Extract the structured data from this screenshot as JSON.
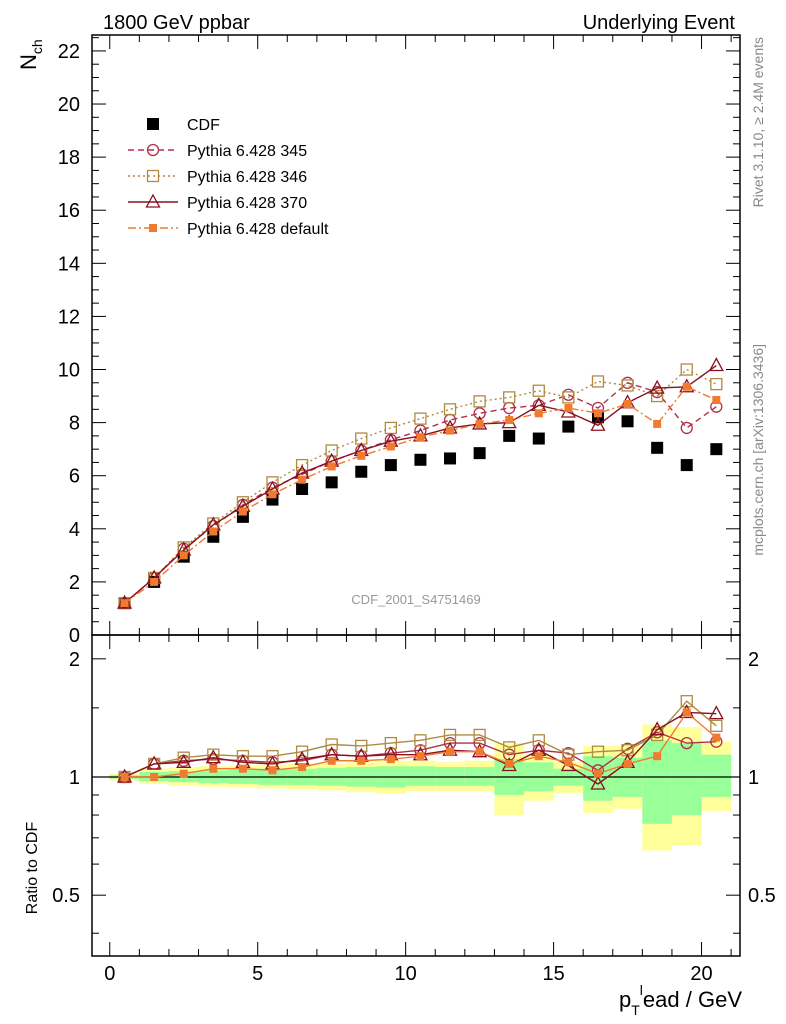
{
  "header": {
    "left_title": "1800 GeV ppbar",
    "right_title": "Underlying Event",
    "right_side_1": "Rivet 3.1.10, ≥ 2.4M events",
    "right_side_2": "mcplots.cern.ch [arXiv:1306.3436]",
    "analysis_id": "CDF_2001_S4751469"
  },
  "colors": {
    "cdf": "#000000",
    "p345": "#b03048",
    "p346": "#b08a40",
    "p370": "#8a1020",
    "pdef": "#f07a30",
    "band_yellow": "#ffff99",
    "band_green": "#99ff99"
  },
  "chart_data": [
    {
      "type": "scatter",
      "panel": "main",
      "ylabel_main": "N",
      "ylabel_sub": "ch",
      "xlim": [
        -0.6,
        21.3
      ],
      "ylim": [
        0,
        22.6
      ],
      "yticks": [
        "0",
        "2",
        "4",
        "6",
        "8",
        "10",
        "12",
        "14",
        "16",
        "18",
        "20",
        "22"
      ],
      "x": [
        0.5,
        1.5,
        2.5,
        3.5,
        4.5,
        5.5,
        6.5,
        7.5,
        8.5,
        9.5,
        10.5,
        11.5,
        12.5,
        13.5,
        14.5,
        15.5,
        16.5,
        17.5,
        18.5,
        19.5,
        20.5
      ],
      "series": [
        {
          "name": "CDF",
          "key": "cdf",
          "marker": "square-filled",
          "values": [
            1.2,
            2.0,
            2.95,
            3.7,
            4.45,
            5.1,
            5.5,
            5.75,
            6.15,
            6.4,
            6.6,
            6.65,
            6.85,
            7.5,
            7.4,
            7.85,
            8.2,
            8.05,
            7.05,
            6.4,
            7.0
          ]
        },
        {
          "name": "Pythia 6.428 345",
          "key": "p345",
          "marker": "circle-open",
          "line": "dashed",
          "values": [
            1.2,
            2.15,
            3.25,
            4.1,
            4.9,
            5.55,
            6.05,
            6.55,
            6.95,
            7.35,
            7.7,
            8.1,
            8.35,
            8.55,
            8.65,
            9.05,
            8.55,
            9.5,
            9.15,
            7.8,
            8.6
          ]
        },
        {
          "name": "Pythia 6.428 346",
          "key": "p346",
          "marker": "square-open",
          "line": "dotted",
          "values": [
            1.2,
            2.15,
            3.3,
            4.2,
            5.0,
            5.75,
            6.4,
            6.95,
            7.4,
            7.8,
            8.15,
            8.5,
            8.8,
            8.95,
            9.2,
            8.95,
            9.55,
            9.4,
            9.0,
            10.0,
            9.45
          ]
        },
        {
          "name": "Pythia 6.428 370",
          "key": "p370",
          "marker": "triangle-open",
          "line": "solid",
          "values": [
            1.2,
            2.15,
            3.2,
            4.15,
            4.85,
            5.5,
            6.1,
            6.55,
            6.95,
            7.3,
            7.5,
            7.8,
            7.95,
            8.0,
            8.65,
            8.4,
            7.9,
            8.75,
            9.3,
            9.35,
            10.15
          ]
        },
        {
          "name": "Pythia 6.428 default",
          "key": "pdef",
          "marker": "square-filled-small",
          "line": "dashdot",
          "values": [
            1.2,
            2.0,
            3.0,
            3.9,
            4.65,
            5.3,
            5.85,
            6.35,
            6.75,
            7.1,
            7.45,
            7.7,
            7.95,
            8.1,
            8.35,
            8.55,
            8.35,
            8.7,
            7.95,
            9.35,
            8.85
          ]
        }
      ]
    },
    {
      "type": "scatter",
      "panel": "ratio",
      "ylabel": "Ratio to CDF",
      "xlabel": "p_T^lead / GeV",
      "xlabel_main": "p",
      "xlabel_sub": "T",
      "xlabel_sup": "l",
      "xlabel_tail": "ead / GeV",
      "xlim": [
        -0.6,
        21.3
      ],
      "ylim_log": [
        0.35,
        2.3
      ],
      "yticks": [
        "0.5",
        "1",
        "2"
      ],
      "xticks": [
        "0",
        "5",
        "10",
        "15",
        "20"
      ],
      "bands": {
        "x_low": [
          0,
          1,
          2,
          3,
          4,
          5,
          6,
          7,
          8,
          9,
          10,
          11,
          12,
          13,
          14,
          15,
          16,
          17,
          18,
          19,
          20
        ],
        "x_high": [
          1,
          2,
          3,
          4,
          5,
          6,
          7,
          8,
          9,
          10,
          11,
          12,
          13,
          14,
          15,
          16,
          17,
          18,
          19,
          20,
          21
        ],
        "yellow_low": [
          0.98,
          0.96,
          0.95,
          0.945,
          0.94,
          0.935,
          0.93,
          0.925,
          0.915,
          0.905,
          0.92,
          0.92,
          0.92,
          0.8,
          0.87,
          0.91,
          0.81,
          0.83,
          0.65,
          0.67,
          0.82
        ],
        "yellow_high": [
          1.02,
          1.05,
          1.06,
          1.065,
          1.07,
          1.075,
          1.08,
          1.085,
          1.09,
          1.1,
          1.1,
          1.09,
          1.1,
          1.22,
          1.14,
          1.09,
          1.2,
          1.2,
          1.36,
          1.34,
          1.23
        ],
        "green_low": [
          0.99,
          0.975,
          0.97,
          0.965,
          0.96,
          0.955,
          0.955,
          0.95,
          0.945,
          0.94,
          0.95,
          0.95,
          0.95,
          0.9,
          0.92,
          0.95,
          0.87,
          0.89,
          0.76,
          0.8,
          0.89
        ],
        "green_high": [
          1.01,
          1.03,
          1.035,
          1.04,
          1.045,
          1.05,
          1.05,
          1.055,
          1.06,
          1.065,
          1.065,
          1.06,
          1.06,
          1.11,
          1.09,
          1.05,
          1.13,
          1.12,
          1.24,
          1.22,
          1.14
        ]
      },
      "series": [
        {
          "name": "Pythia 6.428 345",
          "key": "p345",
          "values": [
            1.0,
            1.08,
            1.1,
            1.11,
            1.1,
            1.09,
            1.1,
            1.14,
            1.13,
            1.15,
            1.17,
            1.22,
            1.22,
            1.14,
            1.17,
            1.15,
            1.04,
            1.18,
            1.3,
            1.22,
            1.23
          ]
        },
        {
          "name": "Pythia 6.428 346",
          "key": "p346",
          "values": [
            1.0,
            1.08,
            1.12,
            1.14,
            1.13,
            1.13,
            1.16,
            1.21,
            1.2,
            1.22,
            1.24,
            1.28,
            1.28,
            1.19,
            1.24,
            1.14,
            1.16,
            1.17,
            1.28,
            1.56,
            1.35
          ]
        },
        {
          "name": "Pythia 6.428 370",
          "key": "p370",
          "values": [
            1.0,
            1.08,
            1.09,
            1.12,
            1.09,
            1.08,
            1.11,
            1.14,
            1.13,
            1.14,
            1.14,
            1.17,
            1.16,
            1.07,
            1.17,
            1.07,
            0.96,
            1.09,
            1.32,
            1.46,
            1.45
          ]
        },
        {
          "name": "Pythia 6.428 default",
          "key": "pdef",
          "values": [
            1.0,
            1.0,
            1.02,
            1.05,
            1.05,
            1.04,
            1.06,
            1.1,
            1.1,
            1.11,
            1.13,
            1.16,
            1.16,
            1.08,
            1.13,
            1.09,
            1.02,
            1.08,
            1.13,
            1.46,
            1.26
          ]
        }
      ]
    }
  ]
}
